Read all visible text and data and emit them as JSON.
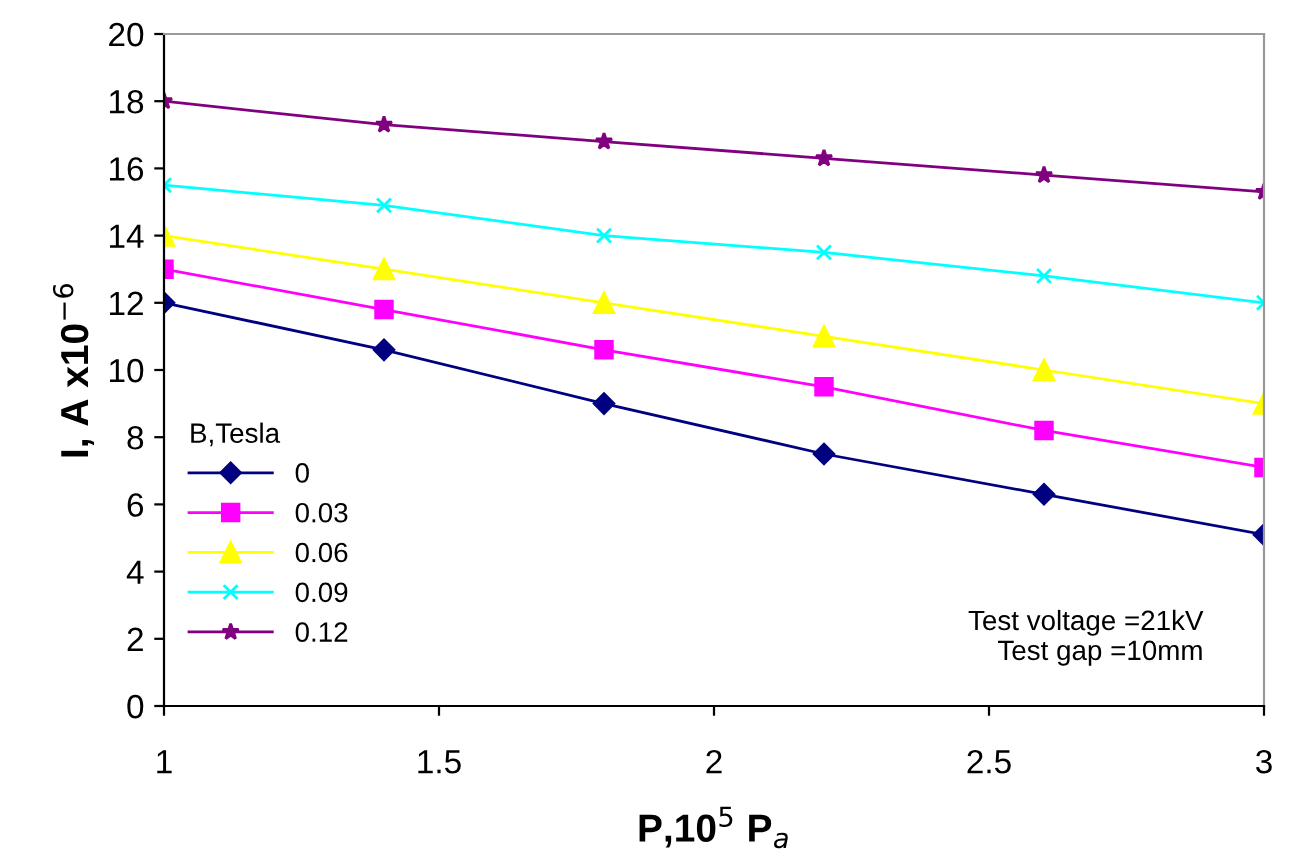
{
  "chart_data": {
    "type": "line",
    "xlabel": "P,10$^{5}$ P$_{a}$",
    "ylabel": "I, A x10$^{−6}$",
    "legend_title": "B,Tesla",
    "legend": "bottom left",
    "grid": false,
    "x": [
      1,
      1.4,
      1.8,
      2.2,
      2.6,
      3
    ],
    "xlim": [
      1,
      3
    ],
    "xticks": [
      1,
      1.5,
      2,
      2.5,
      3
    ],
    "ylim": [
      0,
      20
    ],
    "yticks": [
      0,
      2,
      4,
      6,
      8,
      10,
      12,
      14,
      16,
      18,
      20
    ],
    "series": [
      {
        "name": "0",
        "color": "#000080",
        "marker": "diamond",
        "values": [
          12,
          10.6,
          9,
          7.5,
          6.3,
          5.1
        ]
      },
      {
        "name": "0.03",
        "color": "#ff00ff",
        "marker": "square",
        "values": [
          13,
          11.8,
          10.6,
          9.5,
          8.2,
          7.1
        ]
      },
      {
        "name": "0.06",
        "color": "#ffff00",
        "marker": "triangle",
        "values": [
          14,
          13,
          12,
          11,
          10,
          9
        ]
      },
      {
        "name": "0.09",
        "color": "#00ffff",
        "marker": "cross",
        "values": [
          15.5,
          14.9,
          14,
          13.5,
          12.8,
          12
        ]
      },
      {
        "name": "0.12",
        "color": "#800080",
        "marker": "star",
        "values": [
          18,
          17.3,
          16.8,
          16.3,
          15.8,
          15.3
        ]
      }
    ],
    "annotations": [
      "Test voltage =21kV\nTest gap =10mm"
    ]
  }
}
